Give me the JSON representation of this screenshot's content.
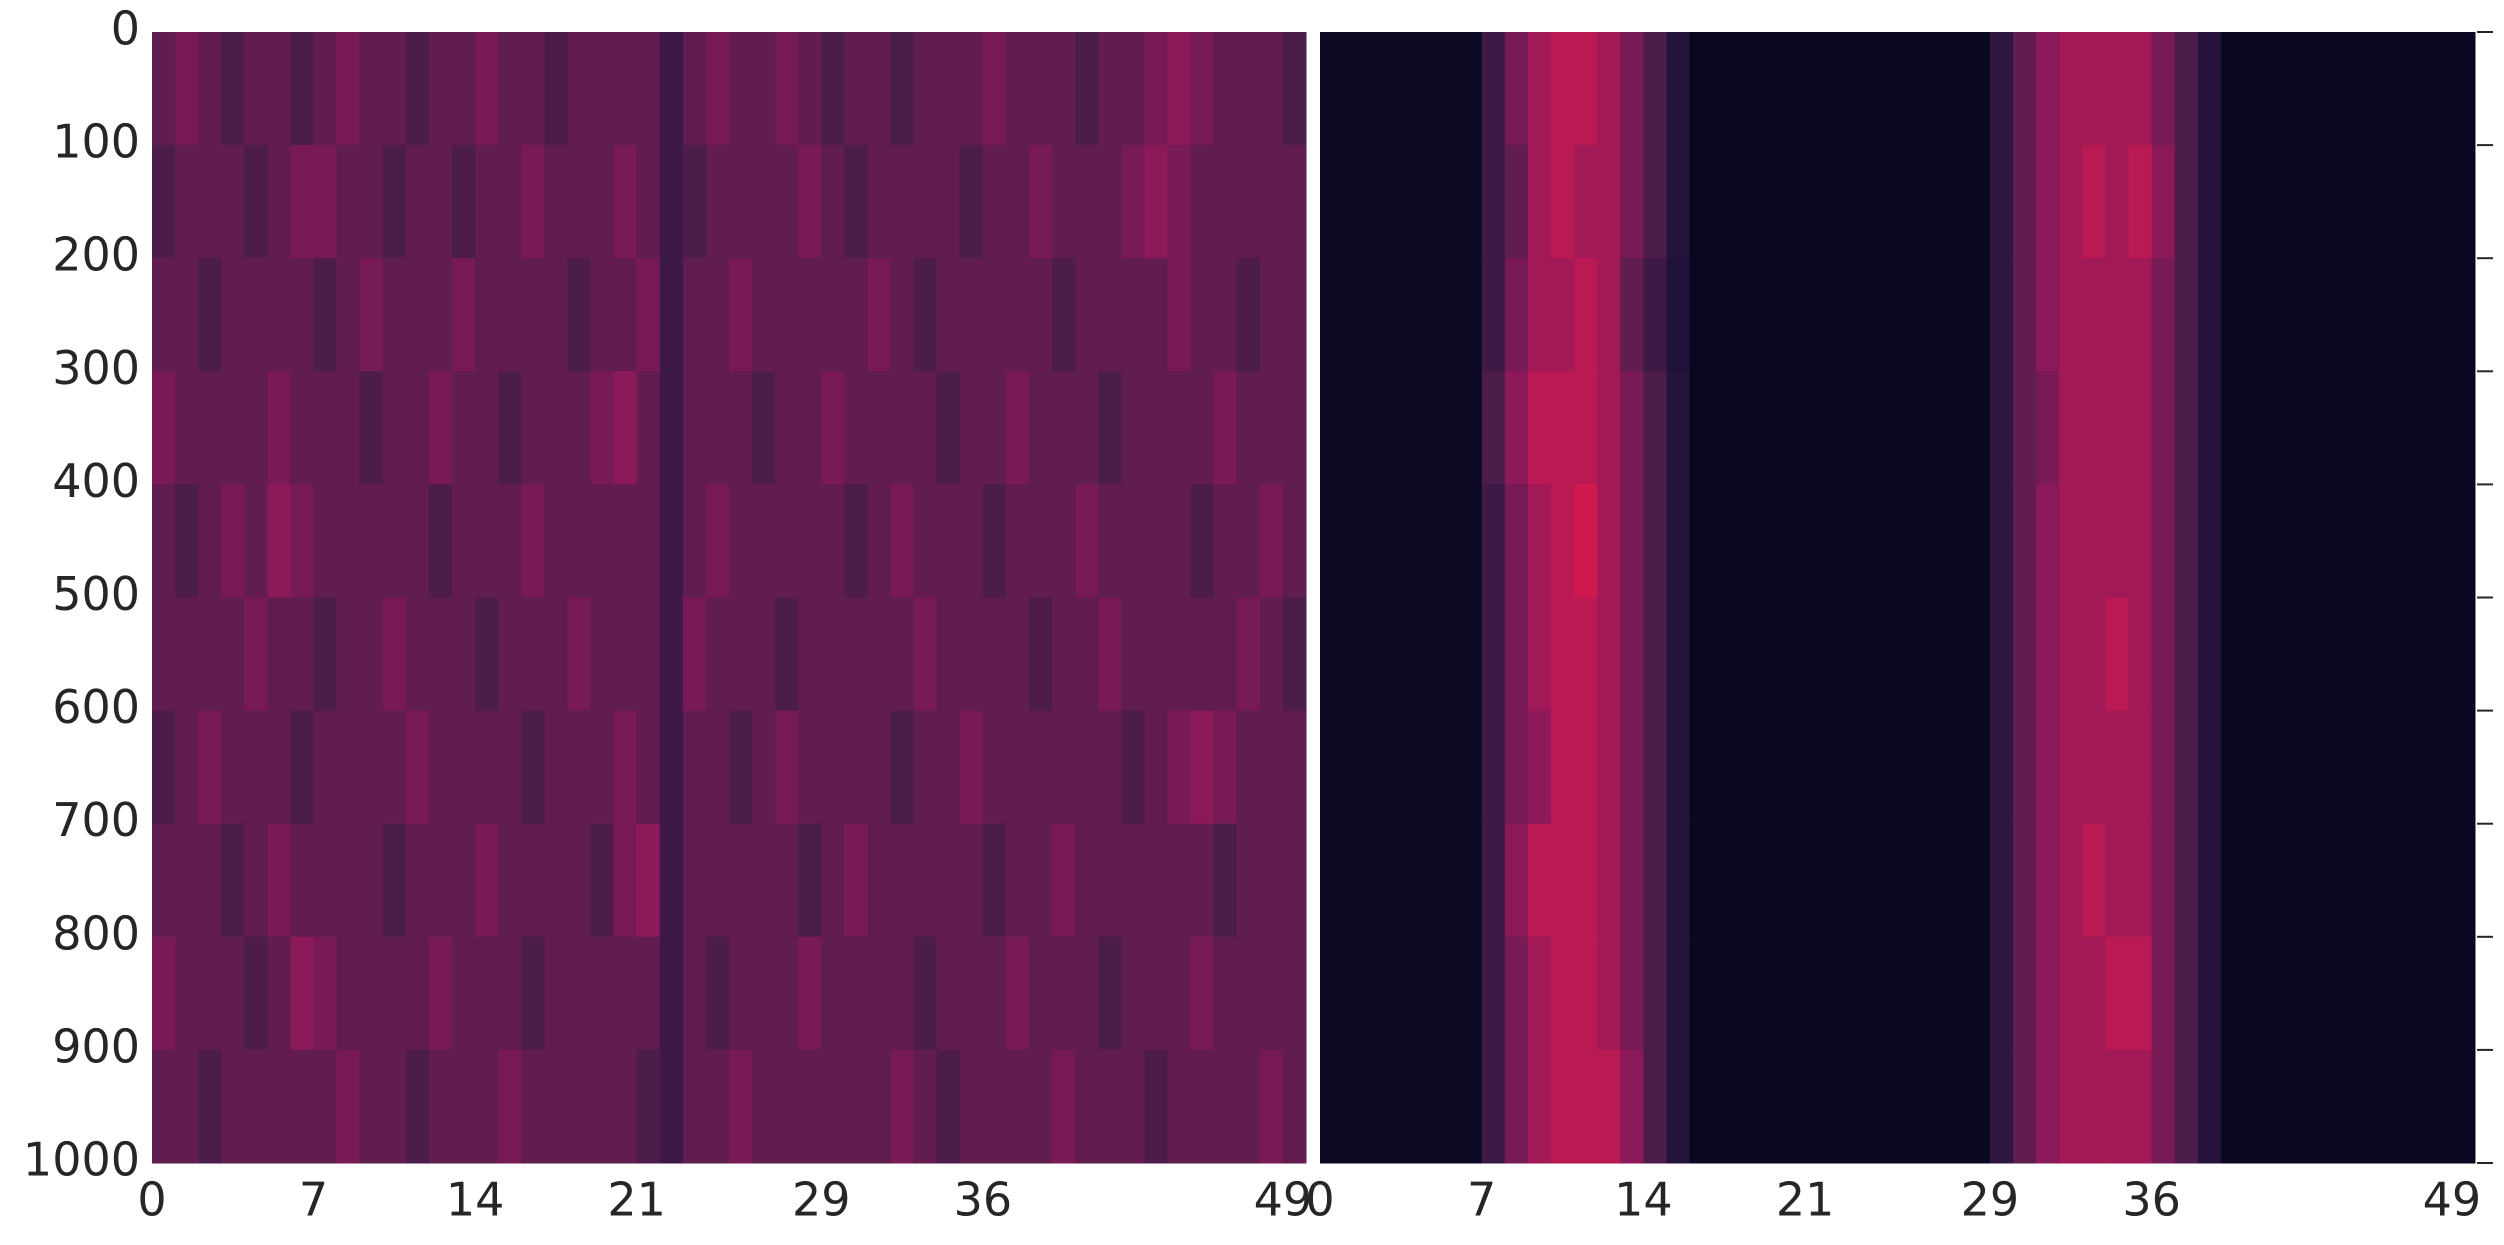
{
  "chart_data": [
    {
      "type": "heatmap",
      "colormap": "rocket",
      "zlim": [
        0,
        1
      ],
      "xlim": [
        0,
        50
      ],
      "xticks": [
        0,
        7,
        14,
        21,
        29,
        36,
        49
      ],
      "ylim": [
        0,
        1000
      ],
      "yticks": [
        0,
        100,
        200,
        300,
        400,
        500,
        600,
        700,
        800,
        900,
        1000
      ],
      "ytick_side": "left",
      "values": [
        [
          0.3,
          0.35,
          0.3,
          0.25,
          0.3,
          0.3,
          0.25,
          0.3,
          0.35,
          0.3,
          0.3,
          0.25,
          0.3,
          0.3,
          0.35,
          0.3,
          0.3,
          0.25,
          0.3,
          0.3,
          0.3,
          0.3,
          0.2,
          0.3,
          0.35,
          0.3,
          0.3,
          0.35,
          0.3,
          0.25,
          0.3,
          0.3,
          0.25,
          0.3,
          0.3,
          0.3,
          0.35,
          0.3,
          0.3,
          0.3,
          0.25,
          0.3,
          0.3,
          0.35,
          0.4,
          0.35,
          0.3,
          0.3,
          0.3,
          0.25
        ],
        [
          0.25,
          0.3,
          0.3,
          0.3,
          0.25,
          0.3,
          0.35,
          0.35,
          0.3,
          0.3,
          0.25,
          0.3,
          0.3,
          0.25,
          0.3,
          0.3,
          0.35,
          0.3,
          0.3,
          0.3,
          0.35,
          0.3,
          0.2,
          0.25,
          0.3,
          0.3,
          0.3,
          0.3,
          0.35,
          0.3,
          0.25,
          0.3,
          0.3,
          0.3,
          0.3,
          0.25,
          0.3,
          0.3,
          0.35,
          0.3,
          0.3,
          0.3,
          0.35,
          0.4,
          0.35,
          0.3,
          0.3,
          0.3,
          0.3,
          0.3
        ],
        [
          0.3,
          0.3,
          0.25,
          0.3,
          0.3,
          0.3,
          0.3,
          0.25,
          0.3,
          0.35,
          0.3,
          0.3,
          0.3,
          0.35,
          0.3,
          0.3,
          0.3,
          0.3,
          0.25,
          0.3,
          0.3,
          0.35,
          0.2,
          0.3,
          0.3,
          0.35,
          0.3,
          0.3,
          0.3,
          0.3,
          0.3,
          0.35,
          0.3,
          0.25,
          0.3,
          0.3,
          0.3,
          0.3,
          0.3,
          0.25,
          0.3,
          0.3,
          0.3,
          0.3,
          0.35,
          0.3,
          0.3,
          0.25,
          0.3,
          0.3
        ],
        [
          0.35,
          0.3,
          0.3,
          0.3,
          0.3,
          0.35,
          0.3,
          0.3,
          0.3,
          0.25,
          0.3,
          0.3,
          0.35,
          0.3,
          0.3,
          0.25,
          0.3,
          0.3,
          0.3,
          0.35,
          0.4,
          0.3,
          0.2,
          0.3,
          0.3,
          0.3,
          0.25,
          0.3,
          0.3,
          0.35,
          0.3,
          0.3,
          0.3,
          0.3,
          0.25,
          0.3,
          0.3,
          0.35,
          0.3,
          0.3,
          0.3,
          0.25,
          0.3,
          0.3,
          0.3,
          0.3,
          0.35,
          0.3,
          0.3,
          0.3
        ],
        [
          0.3,
          0.25,
          0.3,
          0.35,
          0.3,
          0.4,
          0.35,
          0.3,
          0.3,
          0.3,
          0.3,
          0.3,
          0.25,
          0.3,
          0.3,
          0.3,
          0.35,
          0.3,
          0.3,
          0.3,
          0.3,
          0.3,
          0.2,
          0.3,
          0.35,
          0.3,
          0.3,
          0.3,
          0.3,
          0.3,
          0.25,
          0.3,
          0.35,
          0.3,
          0.3,
          0.3,
          0.25,
          0.3,
          0.3,
          0.3,
          0.35,
          0.3,
          0.3,
          0.3,
          0.3,
          0.25,
          0.3,
          0.3,
          0.35,
          0.3
        ],
        [
          0.3,
          0.3,
          0.3,
          0.3,
          0.35,
          0.3,
          0.3,
          0.25,
          0.3,
          0.3,
          0.35,
          0.3,
          0.3,
          0.3,
          0.25,
          0.3,
          0.3,
          0.3,
          0.35,
          0.3,
          0.3,
          0.3,
          0.2,
          0.35,
          0.3,
          0.3,
          0.3,
          0.25,
          0.3,
          0.3,
          0.3,
          0.3,
          0.3,
          0.35,
          0.3,
          0.3,
          0.3,
          0.3,
          0.25,
          0.3,
          0.3,
          0.35,
          0.3,
          0.3,
          0.3,
          0.3,
          0.3,
          0.35,
          0.3,
          0.25
        ],
        [
          0.25,
          0.3,
          0.35,
          0.3,
          0.3,
          0.3,
          0.25,
          0.3,
          0.3,
          0.3,
          0.3,
          0.35,
          0.3,
          0.3,
          0.3,
          0.3,
          0.25,
          0.3,
          0.3,
          0.3,
          0.35,
          0.3,
          0.2,
          0.3,
          0.3,
          0.25,
          0.3,
          0.35,
          0.3,
          0.3,
          0.3,
          0.3,
          0.25,
          0.3,
          0.3,
          0.35,
          0.3,
          0.3,
          0.3,
          0.3,
          0.3,
          0.3,
          0.25,
          0.3,
          0.35,
          0.4,
          0.35,
          0.3,
          0.3,
          0.3
        ],
        [
          0.3,
          0.3,
          0.3,
          0.25,
          0.3,
          0.35,
          0.3,
          0.3,
          0.3,
          0.3,
          0.25,
          0.3,
          0.3,
          0.3,
          0.35,
          0.3,
          0.3,
          0.3,
          0.3,
          0.25,
          0.35,
          0.4,
          0.2,
          0.3,
          0.3,
          0.3,
          0.3,
          0.3,
          0.25,
          0.3,
          0.35,
          0.3,
          0.3,
          0.3,
          0.3,
          0.3,
          0.25,
          0.3,
          0.3,
          0.35,
          0.3,
          0.3,
          0.3,
          0.3,
          0.3,
          0.3,
          0.25,
          0.3,
          0.3,
          0.3
        ],
        [
          0.35,
          0.3,
          0.3,
          0.3,
          0.25,
          0.3,
          0.4,
          0.35,
          0.3,
          0.3,
          0.3,
          0.3,
          0.35,
          0.3,
          0.3,
          0.3,
          0.25,
          0.3,
          0.3,
          0.3,
          0.3,
          0.3,
          0.2,
          0.3,
          0.25,
          0.3,
          0.3,
          0.3,
          0.35,
          0.3,
          0.3,
          0.3,
          0.3,
          0.25,
          0.3,
          0.3,
          0.3,
          0.35,
          0.3,
          0.3,
          0.3,
          0.25,
          0.3,
          0.3,
          0.3,
          0.35,
          0.3,
          0.3,
          0.3,
          0.3
        ],
        [
          0.3,
          0.3,
          0.25,
          0.3,
          0.3,
          0.3,
          0.3,
          0.3,
          0.35,
          0.3,
          0.3,
          0.25,
          0.3,
          0.3,
          0.3,
          0.35,
          0.3,
          0.3,
          0.3,
          0.3,
          0.3,
          0.25,
          0.2,
          0.3,
          0.3,
          0.35,
          0.3,
          0.3,
          0.3,
          0.3,
          0.3,
          0.3,
          0.35,
          0.3,
          0.25,
          0.3,
          0.3,
          0.3,
          0.3,
          0.35,
          0.3,
          0.3,
          0.3,
          0.25,
          0.3,
          0.3,
          0.3,
          0.3,
          0.35,
          0.3
        ]
      ]
    },
    {
      "type": "heatmap",
      "colormap": "rocket",
      "zlim": [
        0,
        1
      ],
      "xlim": [
        0,
        50
      ],
      "xticks": [
        0,
        7,
        14,
        21,
        29,
        36,
        49
      ],
      "ylim": [
        0,
        1000
      ],
      "yticks": [
        0,
        100,
        200,
        300,
        400,
        500,
        600,
        700,
        800,
        900,
        1000
      ],
      "ytick_side": "right",
      "values": [
        [
          0.03,
          0.03,
          0.03,
          0.03,
          0.03,
          0.03,
          0.03,
          0.2,
          0.35,
          0.45,
          0.5,
          0.5,
          0.45,
          0.35,
          0.25,
          0.12,
          0.02,
          0.02,
          0.02,
          0.02,
          0.02,
          0.02,
          0.02,
          0.02,
          0.02,
          0.02,
          0.02,
          0.02,
          0.02,
          0.15,
          0.3,
          0.4,
          0.45,
          0.45,
          0.45,
          0.45,
          0.35,
          0.25,
          0.12,
          0.02,
          0.02,
          0.02,
          0.02,
          0.02,
          0.02,
          0.02,
          0.02,
          0.02,
          0.02,
          0.02
        ],
        [
          0.03,
          0.03,
          0.03,
          0.03,
          0.03,
          0.03,
          0.03,
          0.2,
          0.3,
          0.45,
          0.5,
          0.45,
          0.45,
          0.35,
          0.25,
          0.12,
          0.02,
          0.02,
          0.02,
          0.02,
          0.02,
          0.02,
          0.02,
          0.02,
          0.02,
          0.02,
          0.02,
          0.02,
          0.02,
          0.15,
          0.3,
          0.4,
          0.45,
          0.5,
          0.45,
          0.5,
          0.4,
          0.25,
          0.12,
          0.02,
          0.02,
          0.02,
          0.02,
          0.02,
          0.02,
          0.02,
          0.02,
          0.02,
          0.02,
          0.02
        ],
        [
          0.03,
          0.03,
          0.03,
          0.03,
          0.03,
          0.03,
          0.03,
          0.2,
          0.35,
          0.45,
          0.45,
          0.5,
          0.45,
          0.3,
          0.2,
          0.1,
          0.02,
          0.02,
          0.02,
          0.02,
          0.02,
          0.02,
          0.02,
          0.02,
          0.02,
          0.02,
          0.02,
          0.02,
          0.02,
          0.15,
          0.3,
          0.4,
          0.45,
          0.45,
          0.45,
          0.45,
          0.35,
          0.25,
          0.12,
          0.02,
          0.02,
          0.02,
          0.02,
          0.02,
          0.02,
          0.02,
          0.02,
          0.02,
          0.02,
          0.02
        ],
        [
          0.03,
          0.03,
          0.03,
          0.03,
          0.03,
          0.03,
          0.03,
          0.25,
          0.4,
          0.5,
          0.5,
          0.5,
          0.45,
          0.35,
          0.25,
          0.12,
          0.02,
          0.02,
          0.02,
          0.02,
          0.02,
          0.02,
          0.02,
          0.02,
          0.02,
          0.02,
          0.02,
          0.02,
          0.02,
          0.15,
          0.3,
          0.35,
          0.45,
          0.45,
          0.45,
          0.45,
          0.35,
          0.25,
          0.12,
          0.02,
          0.02,
          0.02,
          0.02,
          0.02,
          0.02,
          0.02,
          0.02,
          0.02,
          0.02,
          0.02
        ],
        [
          0.03,
          0.03,
          0.03,
          0.03,
          0.03,
          0.03,
          0.03,
          0.2,
          0.35,
          0.45,
          0.5,
          0.55,
          0.45,
          0.35,
          0.25,
          0.12,
          0.02,
          0.02,
          0.02,
          0.02,
          0.02,
          0.02,
          0.02,
          0.02,
          0.02,
          0.02,
          0.02,
          0.02,
          0.02,
          0.15,
          0.3,
          0.4,
          0.45,
          0.45,
          0.45,
          0.45,
          0.35,
          0.25,
          0.12,
          0.02,
          0.02,
          0.02,
          0.02,
          0.02,
          0.02,
          0.02,
          0.02,
          0.02,
          0.02,
          0.02
        ],
        [
          0.03,
          0.03,
          0.03,
          0.03,
          0.03,
          0.03,
          0.03,
          0.2,
          0.35,
          0.45,
          0.5,
          0.5,
          0.45,
          0.35,
          0.25,
          0.12,
          0.02,
          0.02,
          0.02,
          0.02,
          0.02,
          0.02,
          0.02,
          0.02,
          0.02,
          0.02,
          0.02,
          0.02,
          0.02,
          0.15,
          0.3,
          0.4,
          0.45,
          0.45,
          0.5,
          0.45,
          0.35,
          0.25,
          0.12,
          0.02,
          0.02,
          0.02,
          0.02,
          0.02,
          0.02,
          0.02,
          0.02,
          0.02,
          0.02,
          0.02
        ],
        [
          0.03,
          0.03,
          0.03,
          0.03,
          0.03,
          0.03,
          0.03,
          0.2,
          0.35,
          0.4,
          0.5,
          0.5,
          0.45,
          0.35,
          0.25,
          0.12,
          0.02,
          0.02,
          0.02,
          0.02,
          0.02,
          0.02,
          0.02,
          0.02,
          0.02,
          0.02,
          0.02,
          0.02,
          0.02,
          0.15,
          0.3,
          0.4,
          0.45,
          0.45,
          0.45,
          0.45,
          0.35,
          0.25,
          0.12,
          0.02,
          0.02,
          0.02,
          0.02,
          0.02,
          0.02,
          0.02,
          0.02,
          0.02,
          0.02,
          0.02
        ],
        [
          0.03,
          0.03,
          0.03,
          0.03,
          0.03,
          0.03,
          0.03,
          0.2,
          0.4,
          0.5,
          0.5,
          0.5,
          0.45,
          0.35,
          0.25,
          0.12,
          0.02,
          0.02,
          0.02,
          0.02,
          0.02,
          0.02,
          0.02,
          0.02,
          0.02,
          0.02,
          0.02,
          0.02,
          0.02,
          0.15,
          0.3,
          0.4,
          0.45,
          0.5,
          0.45,
          0.45,
          0.35,
          0.25,
          0.12,
          0.02,
          0.02,
          0.02,
          0.02,
          0.02,
          0.02,
          0.02,
          0.02,
          0.02,
          0.02,
          0.02
        ],
        [
          0.03,
          0.03,
          0.03,
          0.03,
          0.03,
          0.03,
          0.03,
          0.2,
          0.35,
          0.45,
          0.5,
          0.5,
          0.45,
          0.35,
          0.25,
          0.12,
          0.02,
          0.02,
          0.02,
          0.02,
          0.02,
          0.02,
          0.02,
          0.02,
          0.02,
          0.02,
          0.02,
          0.02,
          0.02,
          0.15,
          0.3,
          0.4,
          0.45,
          0.45,
          0.5,
          0.5,
          0.35,
          0.25,
          0.12,
          0.02,
          0.02,
          0.02,
          0.02,
          0.02,
          0.02,
          0.02,
          0.02,
          0.02,
          0.02,
          0.02
        ],
        [
          0.03,
          0.03,
          0.03,
          0.03,
          0.03,
          0.03,
          0.03,
          0.2,
          0.35,
          0.45,
          0.5,
          0.5,
          0.5,
          0.4,
          0.25,
          0.12,
          0.02,
          0.02,
          0.02,
          0.02,
          0.02,
          0.02,
          0.02,
          0.02,
          0.02,
          0.02,
          0.02,
          0.02,
          0.02,
          0.15,
          0.3,
          0.4,
          0.45,
          0.45,
          0.45,
          0.45,
          0.35,
          0.25,
          0.12,
          0.02,
          0.02,
          0.02,
          0.02,
          0.02,
          0.02,
          0.02,
          0.02,
          0.02,
          0.02,
          0.02
        ]
      ]
    }
  ]
}
